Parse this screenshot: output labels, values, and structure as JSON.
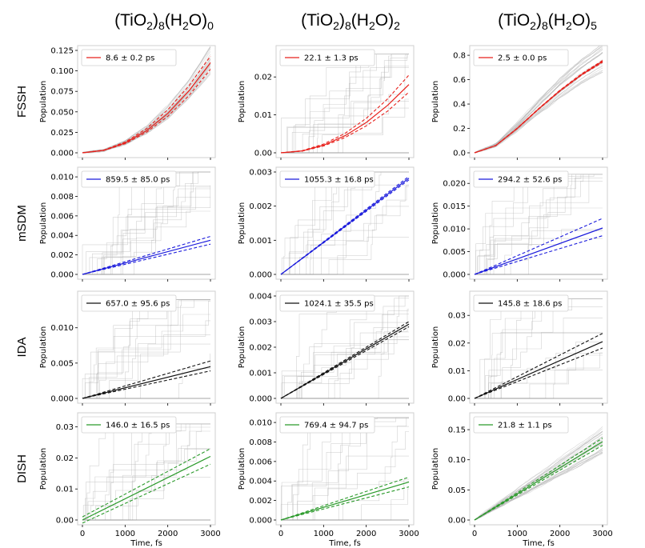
{
  "column_titles": [
    {
      "base": "(TiO",
      "sub1": "2",
      "mid": ")",
      "sub2": "8",
      "mid2": "(H",
      "sub3": "2",
      "mid3": "O)",
      "sub4": "0"
    },
    {
      "base": "(TiO",
      "sub1": "2",
      "mid": ")",
      "sub2": "8",
      "mid2": "(H",
      "sub3": "2",
      "mid3": "O)",
      "sub4": "2"
    },
    {
      "base": "(TiO",
      "sub1": "2",
      "mid": ")",
      "sub2": "8",
      "mid2": "(H",
      "sub3": "2",
      "mid3": "O)",
      "sub4": "5"
    }
  ],
  "row_labels": [
    "FSSH",
    "mSDM",
    "IDA",
    "DISH"
  ],
  "ylabel": "Population",
  "xlabel": "Time, fs",
  "colors": {
    "FSSH": "#e8211c",
    "mSDM": "#1a1adc",
    "IDA": "#111111",
    "DISH": "#2a9a2a",
    "trajectory": "#b5b5b5"
  },
  "chart_data": [
    {
      "type": "line",
      "method": "FSSH",
      "system_col": 0,
      "legend": "8.6 ± 0.2 ps",
      "xlim": [
        0,
        3000
      ],
      "ylim": [
        0,
        0.125
      ],
      "xticks": [
        0,
        1000,
        2000,
        3000
      ],
      "yticks": [
        "0.000",
        "0.025",
        "0.050",
        "0.075",
        "0.100",
        "0.125"
      ],
      "fit": {
        "x": [
          0,
          500,
          1000,
          1500,
          2000,
          2500,
          3000
        ],
        "y": [
          0,
          0.003,
          0.012,
          0.027,
          0.048,
          0.076,
          0.11
        ]
      },
      "band": {
        "upper": [
          0,
          0.0033,
          0.0131,
          0.0295,
          0.0524,
          0.082,
          0.118
        ],
        "lower": [
          0,
          0.0028,
          0.0111,
          0.025,
          0.0444,
          0.07,
          0.102
        ]
      },
      "noise": "bundle",
      "noise_peak": 0.12
    },
    {
      "type": "line",
      "method": "FSSH",
      "system_col": 1,
      "legend": "22.1 ± 1.3 ps",
      "xlim": [
        0,
        3000
      ],
      "ylim": [
        0,
        0.027
      ],
      "xticks": [
        0,
        1000,
        2000,
        3000
      ],
      "yticks": [
        "0.00",
        "0.01",
        "0.02"
      ],
      "fit": {
        "x": [
          0,
          500,
          1000,
          1500,
          2000,
          2500,
          3000
        ],
        "y": [
          0,
          0.0005,
          0.002,
          0.0045,
          0.008,
          0.0125,
          0.018
        ]
      },
      "band": {
        "upper": [
          0,
          0.00057,
          0.0023,
          0.0051,
          0.0091,
          0.0142,
          0.0205
        ],
        "lower": [
          0,
          0.00045,
          0.0018,
          0.004,
          0.0071,
          0.011,
          0.016
        ]
      },
      "noise": "steps",
      "noise_peak": 0.026
    },
    {
      "type": "line",
      "method": "FSSH",
      "system_col": 2,
      "legend": "2.5 ± 0.0 ps",
      "xlim": [
        0,
        3000
      ],
      "ylim": [
        0,
        0.84
      ],
      "xticks": [
        0,
        1000,
        2000,
        3000
      ],
      "yticks": [
        "0.0",
        "0.2",
        "0.4",
        "0.6",
        "0.8"
      ],
      "fit": {
        "x": [
          0,
          500,
          1000,
          1500,
          2000,
          2500,
          3000
        ],
        "y": [
          0,
          0.06,
          0.2,
          0.36,
          0.51,
          0.64,
          0.75
        ]
      },
      "band": {
        "upper": [
          0,
          0.061,
          0.202,
          0.363,
          0.514,
          0.645,
          0.757
        ],
        "lower": [
          0,
          0.059,
          0.198,
          0.357,
          0.506,
          0.635,
          0.743
        ]
      },
      "noise": "bundle",
      "noise_peak": 0.8
    },
    {
      "type": "line",
      "method": "mSDM",
      "system_col": 0,
      "legend": "859.5 ± 85.0 ps",
      "xlim": [
        0,
        3000
      ],
      "ylim": [
        0,
        0.0105
      ],
      "xticks": [
        0,
        1000,
        2000,
        3000
      ],
      "yticks": [
        "0.000",
        "0.002",
        "0.004",
        "0.006",
        "0.008",
        "0.010"
      ],
      "fit": {
        "x": [
          0,
          3000
        ],
        "y": [
          0,
          0.0035
        ]
      },
      "band": {
        "upper": [
          0,
          0.0039
        ],
        "lower": [
          0,
          0.0031
        ]
      },
      "noise": "steps",
      "noise_peak": 0.0105
    },
    {
      "type": "line",
      "method": "mSDM",
      "system_col": 1,
      "legend": "1055.3 ± 16.8 ps",
      "xlim": [
        0,
        3000
      ],
      "ylim": [
        0,
        0.003
      ],
      "xticks": [
        0,
        1000,
        2000,
        3000
      ],
      "yticks": [
        "0.000",
        "0.001",
        "0.002",
        "0.003"
      ],
      "fit": {
        "x": [
          0,
          3000
        ],
        "y": [
          0,
          0.00282
        ]
      },
      "band": {
        "upper": [
          0,
          0.00287
        ],
        "lower": [
          0,
          0.00277
        ]
      },
      "noise": "steps",
      "noise_peak": 0.003
    },
    {
      "type": "line",
      "method": "mSDM",
      "system_col": 2,
      "legend": "294.2 ± 52.6 ps",
      "xlim": [
        0,
        3000
      ],
      "ylim": [
        0,
        0.0225
      ],
      "xticks": [
        0,
        1000,
        2000,
        3000
      ],
      "yticks": [
        "0.000",
        "0.005",
        "0.010",
        "0.015",
        "0.020"
      ],
      "fit": {
        "x": [
          0,
          3000
        ],
        "y": [
          0,
          0.0102
        ]
      },
      "band": {
        "upper": [
          0,
          0.0123
        ],
        "lower": [
          0,
          0.0085
        ]
      },
      "noise": "steps",
      "noise_peak": 0.022
    },
    {
      "type": "line",
      "method": "IDA",
      "system_col": 0,
      "legend": "657.0 ± 95.6 ps",
      "xlim": [
        0,
        3000
      ],
      "ylim": [
        0,
        0.0145
      ],
      "xticks": [
        0,
        1000,
        2000,
        3000
      ],
      "yticks": [
        "0.000",
        "0.005",
        "0.010"
      ],
      "fit": {
        "x": [
          0,
          3000
        ],
        "y": [
          0,
          0.0045
        ]
      },
      "band": {
        "upper": [
          0,
          0.0053
        ],
        "lower": [
          0,
          0.0039
        ]
      },
      "noise": "steps",
      "noise_peak": 0.014
    },
    {
      "type": "line",
      "method": "IDA",
      "system_col": 1,
      "legend": "1024.1 ± 35.5 ps",
      "xlim": [
        0,
        3000
      ],
      "ylim": [
        0,
        0.004
      ],
      "xticks": [
        0,
        1000,
        2000,
        3000
      ],
      "yticks": [
        "0.000",
        "0.001",
        "0.002",
        "0.003",
        "0.004"
      ],
      "fit": {
        "x": [
          0,
          3000
        ],
        "y": [
          0,
          0.0029
        ]
      },
      "band": {
        "upper": [
          0,
          0.003
        ],
        "lower": [
          0,
          0.0028
        ]
      },
      "noise": "steps",
      "noise_peak": 0.004
    },
    {
      "type": "line",
      "method": "IDA",
      "system_col": 2,
      "legend": "145.8 ± 18.6 ps",
      "xlim": [
        0,
        3000
      ],
      "ylim": [
        0,
        0.037
      ],
      "xticks": [
        0,
        1000,
        2000,
        3000
      ],
      "yticks": [
        "0.00",
        "0.01",
        "0.02",
        "0.03"
      ],
      "fit": {
        "x": [
          0,
          3000
        ],
        "y": [
          0,
          0.0205
        ]
      },
      "band": {
        "upper": [
          0,
          0.0235
        ],
        "lower": [
          0,
          0.0182
        ]
      },
      "noise": "steps",
      "noise_peak": 0.036
    },
    {
      "type": "line",
      "method": "DISH",
      "system_col": 0,
      "legend": "146.0 ± 16.5 ps",
      "xlim": [
        0,
        3000
      ],
      "ylim": [
        0,
        0.033
      ],
      "xticks": [
        0,
        1000,
        2000,
        3000
      ],
      "yticks": [
        "0.00",
        "0.01",
        "0.02",
        "0.03"
      ],
      "fit": {
        "x": [
          0,
          3000
        ],
        "y": [
          0,
          0.0205
        ]
      },
      "band": {
        "upper": [
          0.001,
          0.023
        ],
        "lower": [
          -0.001,
          0.018
        ]
      },
      "noise": "steps",
      "noise_peak": 0.031
    },
    {
      "type": "line",
      "method": "DISH",
      "system_col": 1,
      "legend": "769.4 ± 94.7 ps",
      "xlim": [
        0,
        3000
      ],
      "ylim": [
        0,
        0.0105
      ],
      "xticks": [
        0,
        1000,
        2000,
        3000
      ],
      "yticks": [
        "0.000",
        "0.002",
        "0.004",
        "0.006",
        "0.008",
        "0.010"
      ],
      "fit": {
        "x": [
          0,
          3000
        ],
        "y": [
          0,
          0.0039
        ]
      },
      "band": {
        "upper": [
          0,
          0.0044
        ],
        "lower": [
          0,
          0.0034
        ]
      },
      "noise": "steps",
      "noise_peak": 0.0105
    },
    {
      "type": "line",
      "method": "DISH",
      "system_col": 2,
      "legend": "21.8 ± 1.1 ps",
      "xlim": [
        0,
        3000
      ],
      "ylim": [
        0,
        0.17
      ],
      "xticks": [
        0,
        1000,
        2000,
        3000
      ],
      "yticks": [
        "0.00",
        "0.05",
        "0.10",
        "0.15"
      ],
      "fit": {
        "x": [
          0,
          3000
        ],
        "y": [
          0,
          0.13
        ]
      },
      "band": {
        "upper": [
          0,
          0.136
        ],
        "lower": [
          0,
          0.124
        ]
      },
      "noise": "bundle",
      "noise_peak": 0.165
    }
  ]
}
